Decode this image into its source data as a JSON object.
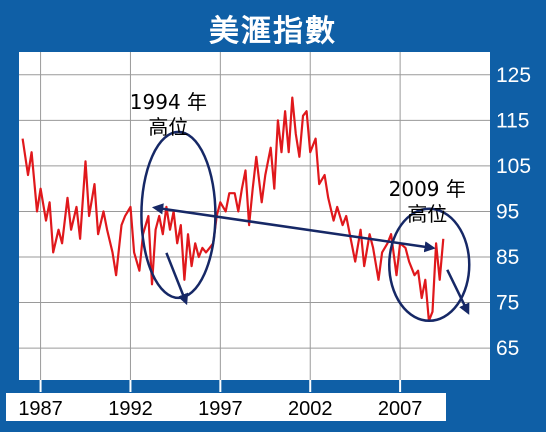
{
  "chart_data": {
    "type": "line",
    "title": "美滙指數",
    "xlabel": "",
    "ylabel": "",
    "xlim": [
      1985.8,
      2012.0
    ],
    "ylim": [
      58.0,
      130.0
    ],
    "x_ticks": [
      "1987",
      "1992",
      "1997",
      "2002",
      "2007"
    ],
    "y_ticks": [
      "125",
      "115",
      "105",
      "95",
      "85",
      "75",
      "65"
    ],
    "grid": true,
    "legend": "none",
    "colors": {
      "line": "#e0181c",
      "annotation": "#162866",
      "frame": "#0f5fa6"
    },
    "series": [
      {
        "x": [
          1986.0,
          1986.3,
          1986.5,
          1986.8,
          1987.0,
          1987.3,
          1987.5,
          1987.7,
          1988.0,
          1988.2,
          1988.5,
          1988.7,
          1989.0,
          1989.2,
          1989.5,
          1989.7,
          1990.0,
          1990.2,
          1990.5,
          1990.7,
          1991.0,
          1991.2,
          1991.5,
          1991.7,
          1992.0,
          1992.2,
          1992.5,
          1992.7,
          1993.0,
          1993.2,
          1993.4,
          1993.6,
          1993.8,
          1994.0,
          1994.2,
          1994.4,
          1994.6,
          1994.8,
          1995.0,
          1995.2,
          1995.4,
          1995.6,
          1995.8,
          1996.0,
          1996.2,
          1996.4,
          1996.6,
          1996.8,
          1997.0,
          1997.3,
          1997.5,
          1997.8,
          1998.0,
          1998.2,
          1998.4,
          1998.6,
          1998.8,
          1999.0,
          1999.3,
          1999.5,
          1999.8,
          2000.0,
          2000.2,
          2000.4,
          2000.6,
          2000.8,
          2001.0,
          2001.2,
          2001.4,
          2001.6,
          2001.8,
          2002.0,
          2002.3,
          2002.5,
          2002.8,
          2003.0,
          2003.3,
          2003.5,
          2003.8,
          2004.0,
          2004.3,
          2004.5,
          2004.8,
          2005.0,
          2005.3,
          2005.5,
          2005.8,
          2006.0,
          2006.3,
          2006.5,
          2006.8,
          2007.0,
          2007.3,
          2007.5,
          2007.8,
          2008.0,
          2008.2,
          2008.4,
          2008.6,
          2008.8,
          2009.0,
          2009.2,
          2009.4
        ],
        "y": [
          111,
          103,
          108,
          95,
          100,
          93,
          97,
          86,
          91,
          88,
          98,
          91,
          96,
          89,
          106,
          94,
          101,
          90,
          95,
          91,
          86,
          81,
          92,
          94,
          96,
          86,
          82,
          90,
          94,
          79,
          91,
          94,
          90,
          96,
          91,
          95,
          88,
          92,
          80,
          90,
          83,
          88,
          85,
          87,
          86,
          87,
          88,
          94,
          97,
          95,
          99,
          99,
          95,
          100,
          104,
          92,
          100,
          107,
          97,
          103,
          109,
          100,
          115,
          108,
          117,
          108,
          120,
          112,
          107,
          116,
          117,
          108,
          111,
          101,
          103,
          98,
          93,
          96,
          92,
          94,
          88,
          84,
          91,
          83,
          90,
          87,
          80,
          86,
          88,
          90,
          81,
          88,
          87,
          84,
          81,
          82,
          76,
          80,
          71,
          73,
          88,
          80,
          89
        ]
      }
    ],
    "annotations": [
      {
        "line1": "1994 年",
        "line2": "高位",
        "year": 1994.0,
        "value": 96
      },
      {
        "line1": "2009 年",
        "line2": "高位",
        "year": 2009.4,
        "value": 89
      }
    ]
  }
}
